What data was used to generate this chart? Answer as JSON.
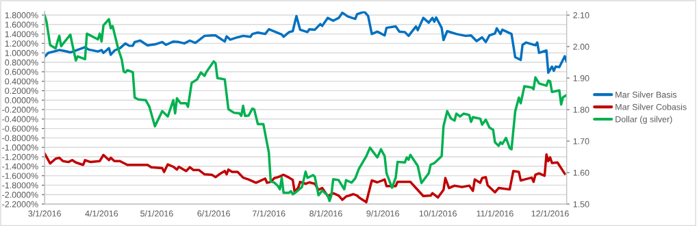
{
  "chart_data": {
    "type": "line",
    "xlim": [
      "2016-03-01",
      "2016-12-10"
    ],
    "xticks": [
      {
        "value": "2016-03-01",
        "label": "3/1/2016"
      },
      {
        "value": "2016-04-01",
        "label": "4/1/2016"
      },
      {
        "value": "2016-05-01",
        "label": "5/1/2016"
      },
      {
        "value": "2016-06-01",
        "label": "6/1/2016"
      },
      {
        "value": "2016-07-01",
        "label": "7/1/2016"
      },
      {
        "value": "2016-08-01",
        "label": "8/1/2016"
      },
      {
        "value": "2016-09-01",
        "label": "9/1/2016"
      },
      {
        "value": "2016-10-01",
        "label": "10/1/2016"
      },
      {
        "value": "2016-11-01",
        "label": "11/1/2016"
      },
      {
        "value": "2016-12-01",
        "label": "12/1/2016"
      }
    ],
    "ylim": [
      -2.2,
      1.88
    ],
    "yticks": [
      {
        "value": -2.2,
        "label": "-2.2000%"
      },
      {
        "value": -2.0,
        "label": "-2.0000%"
      },
      {
        "value": -1.8,
        "label": "-1.8000%"
      },
      {
        "value": -1.6,
        "label": "-1.6000%"
      },
      {
        "value": -1.4,
        "label": "-1.4000%"
      },
      {
        "value": -1.2,
        "label": "-1.2000%"
      },
      {
        "value": -1.0,
        "label": "-1.0000%"
      },
      {
        "value": -0.8,
        "label": "-0.8000%"
      },
      {
        "value": -0.6,
        "label": "-0.6000%"
      },
      {
        "value": -0.4,
        "label": "-0.4000%"
      },
      {
        "value": -0.2,
        "label": "-0.2000%"
      },
      {
        "value": 0,
        "label": "0.0000%"
      },
      {
        "value": 0.2,
        "label": "0.2000%"
      },
      {
        "value": 0.4,
        "label": "0.4000%"
      },
      {
        "value": 0.6,
        "label": "0.6000%"
      },
      {
        "value": 0.8,
        "label": "0.8000%"
      },
      {
        "value": 1.0,
        "label": "1.0000%"
      },
      {
        "value": 1.2,
        "label": "1.2000%"
      },
      {
        "value": 1.4,
        "label": "1.4000%"
      },
      {
        "value": 1.6,
        "label": "1.6000%"
      },
      {
        "value": 1.8,
        "label": "1.8000%"
      }
    ],
    "y2lim": [
      1.5,
      2.112
    ],
    "y2ticks": [
      {
        "value": 1.5,
        "label": "1.50"
      },
      {
        "value": 1.6,
        "label": "1.60"
      },
      {
        "value": 1.7,
        "label": "1.70"
      },
      {
        "value": 1.8,
        "label": "1.80"
      },
      {
        "value": 1.9,
        "label": "1.90"
      },
      {
        "value": 2.0,
        "label": "2.00"
      },
      {
        "value": 2.1,
        "label": "2.10"
      }
    ],
    "grid": "y",
    "legend": "right",
    "marker": "none",
    "line_style": "solid",
    "series": [
      {
        "name": "Mar Silver Basis",
        "color": "#0070c0",
        "x": [
          "2016-03-01",
          "2016-03-03",
          "2016-03-05",
          "2016-03-09",
          "2016-03-12",
          "2016-03-15",
          "2016-03-23",
          "2016-03-25",
          "2016-03-30",
          "2016-04-01",
          "2016-04-02",
          "2016-04-05",
          "2016-04-06",
          "2016-04-08",
          "2016-04-11",
          "2016-04-14",
          "2016-04-16",
          "2016-04-18",
          "2016-04-19",
          "2016-04-22",
          "2016-04-26",
          "2016-04-30",
          "2016-05-04",
          "2016-05-06",
          "2016-05-10",
          "2016-05-13",
          "2016-05-16",
          "2016-05-19",
          "2016-05-22",
          "2016-05-24",
          "2016-05-27",
          "2016-05-31",
          "2016-06-02",
          "2016-06-07",
          "2016-06-08",
          "2016-06-10",
          "2016-06-14",
          "2016-06-17",
          "2016-06-21",
          "2016-06-22",
          "2016-06-25",
          "2016-06-29",
          "2016-07-01",
          "2016-07-03",
          "2016-07-08",
          "2016-07-09",
          "2016-07-12",
          "2016-07-14",
          "2016-07-16",
          "2016-07-18",
          "2016-07-22",
          "2016-07-23",
          "2016-07-26",
          "2016-07-29",
          "2016-07-30",
          "2016-08-02",
          "2016-08-05",
          "2016-08-08",
          "2016-08-10",
          "2016-08-13",
          "2016-08-17",
          "2016-08-18",
          "2016-08-22",
          "2016-08-24",
          "2016-08-26",
          "2016-08-29",
          "2016-09-02",
          "2016-09-03",
          "2016-09-08",
          "2016-09-10",
          "2016-09-13",
          "2016-09-15",
          "2016-09-19",
          "2016-09-20",
          "2016-09-23",
          "2016-09-26",
          "2016-09-28",
          "2016-09-29",
          "2016-09-30",
          "2016-10-03",
          "2016-10-04",
          "2016-10-06",
          "2016-10-11",
          "2016-10-16",
          "2016-10-19",
          "2016-10-22",
          "2016-10-25",
          "2016-10-27",
          "2016-10-29",
          "2016-11-01",
          "2016-11-02",
          "2016-11-04",
          "2016-11-05",
          "2016-11-10",
          "2016-11-12",
          "2016-11-15",
          "2016-11-16",
          "2016-11-18",
          "2016-11-23",
          "2016-11-24",
          "2016-11-25",
          "2016-11-29",
          "2016-11-30",
          "2016-12-02",
          "2016-12-03",
          "2016-12-04",
          "2016-12-06",
          "2016-12-09",
          "2016-12-10"
        ],
        "values": [
          0.92,
          1.0,
          1.02,
          1.06,
          1.04,
          1.01,
          1.12,
          1.07,
          1.03,
          1.06,
          1.0,
          1.1,
          0.96,
          1.05,
          1.1,
          1.2,
          1.15,
          1.15,
          1.23,
          1.26,
          1.16,
          1.18,
          1.23,
          1.17,
          1.24,
          1.23,
          1.2,
          1.26,
          1.21,
          1.27,
          1.36,
          1.37,
          1.37,
          1.24,
          1.35,
          1.28,
          1.33,
          1.36,
          1.34,
          1.4,
          1.43,
          1.4,
          1.5,
          1.47,
          1.39,
          1.34,
          1.44,
          1.46,
          1.78,
          1.49,
          1.44,
          1.5,
          1.49,
          1.61,
          1.57,
          1.74,
          1.68,
          1.74,
          1.85,
          1.77,
          1.72,
          1.82,
          1.87,
          1.78,
          1.4,
          1.45,
          1.37,
          1.53,
          1.56,
          1.45,
          1.44,
          1.36,
          1.56,
          1.48,
          1.74,
          1.64,
          1.74,
          1.66,
          1.75,
          1.53,
          1.27,
          1.46,
          1.4,
          1.36,
          1.37,
          1.25,
          1.33,
          1.23,
          1.37,
          1.41,
          1.52,
          1.4,
          1.49,
          1.4,
          0.91,
          0.85,
          1.17,
          1.22,
          1.16,
          1.22,
          1.0,
          1.05,
          0.58,
          0.71,
          0.62,
          0.71,
          0.7,
          0.93,
          0.81
        ]
      },
      {
        "name": "Mar Silver Cobasis",
        "color": "#c00000",
        "x": [
          "2016-03-01",
          "2016-03-04",
          "2016-03-07",
          "2016-03-09",
          "2016-03-11",
          "2016-03-14",
          "2016-03-16",
          "2016-03-18",
          "2016-03-22",
          "2016-03-23",
          "2016-03-26",
          "2016-03-31",
          "2016-04-02",
          "2016-04-05",
          "2016-04-06",
          "2016-04-08",
          "2016-04-11",
          "2016-04-15",
          "2016-04-19",
          "2016-04-26",
          "2016-04-28",
          "2016-05-04",
          "2016-05-05",
          "2016-05-07",
          "2016-05-10",
          "2016-05-12",
          "2016-05-13",
          "2016-05-17",
          "2016-05-19",
          "2016-05-21",
          "2016-05-24",
          "2016-05-27",
          "2016-05-31",
          "2016-06-02",
          "2016-06-04",
          "2016-06-07",
          "2016-06-08",
          "2016-06-09",
          "2016-06-11",
          "2016-06-14",
          "2016-06-17",
          "2016-06-20",
          "2016-06-24",
          "2016-06-29",
          "2016-06-30",
          "2016-07-02",
          "2016-07-04",
          "2016-07-06",
          "2016-07-09",
          "2016-07-12",
          "2016-07-14",
          "2016-07-15",
          "2016-07-17",
          "2016-07-18",
          "2016-07-21",
          "2016-07-23",
          "2016-07-26",
          "2016-07-28",
          "2016-07-30",
          "2016-08-02",
          "2016-08-05",
          "2016-08-08",
          "2016-08-10",
          "2016-08-12",
          "2016-08-16",
          "2016-08-18",
          "2016-08-19",
          "2016-08-23",
          "2016-08-26",
          "2016-08-29",
          "2016-09-02",
          "2016-09-03",
          "2016-09-08",
          "2016-09-09",
          "2016-09-13",
          "2016-09-16",
          "2016-09-19",
          "2016-09-23",
          "2016-09-27",
          "2016-09-28",
          "2016-10-01",
          "2016-10-04",
          "2016-10-05",
          "2016-10-07",
          "2016-10-10",
          "2016-10-14",
          "2016-10-18",
          "2016-10-20",
          "2016-10-21",
          "2016-10-24",
          "2016-10-25",
          "2016-10-27",
          "2016-10-28",
          "2016-11-01",
          "2016-11-03",
          "2016-11-09",
          "2016-11-11",
          "2016-11-14",
          "2016-11-15",
          "2016-11-17",
          "2016-11-21",
          "2016-11-22",
          "2016-11-23",
          "2016-11-25",
          "2016-11-28",
          "2016-11-29",
          "2016-11-30",
          "2016-12-01",
          "2016-12-02",
          "2016-12-05",
          "2016-12-09"
        ],
        "values": [
          -1.13,
          -1.34,
          -1.24,
          -1.22,
          -1.29,
          -1.31,
          -1.27,
          -1.32,
          -1.37,
          -1.27,
          -1.31,
          -1.29,
          -1.16,
          -1.27,
          -1.22,
          -1.29,
          -1.29,
          -1.37,
          -1.37,
          -1.37,
          -1.42,
          -1.44,
          -1.52,
          -1.36,
          -1.41,
          -1.47,
          -1.41,
          -1.5,
          -1.42,
          -1.48,
          -1.48,
          -1.57,
          -1.58,
          -1.63,
          -1.57,
          -1.5,
          -1.57,
          -1.47,
          -1.52,
          -1.52,
          -1.64,
          -1.68,
          -1.75,
          -1.66,
          -1.75,
          -1.73,
          -1.65,
          -1.63,
          -1.58,
          -1.64,
          -1.69,
          -1.94,
          -1.85,
          -1.73,
          -1.77,
          -1.74,
          -1.77,
          -1.9,
          -1.86,
          -2.03,
          -1.97,
          -2.02,
          -2.11,
          -2.04,
          -1.99,
          -2.02,
          -2.06,
          -2.16,
          -1.7,
          -1.74,
          -1.68,
          -1.82,
          -1.82,
          -1.73,
          -1.73,
          -1.73,
          -1.86,
          -2.03,
          -2.02,
          -1.97,
          -2.06,
          -1.9,
          -1.65,
          -1.86,
          -1.81,
          -1.84,
          -1.81,
          -1.92,
          -1.68,
          -1.75,
          -1.65,
          -1.63,
          -1.8,
          -1.95,
          -1.86,
          -1.89,
          -1.5,
          -1.52,
          -1.7,
          -1.68,
          -1.64,
          -1.73,
          -1.58,
          -1.55,
          -1.6,
          -1.15,
          -1.29,
          -1.21,
          -1.33,
          -1.32,
          -1.56
        ]
      },
      {
        "name": "Dollar (g silver)",
        "color": "#00b050",
        "axis": "y2",
        "x": [
          "2016-03-01",
          "2016-03-02",
          "2016-03-04",
          "2016-03-07",
          "2016-03-08",
          "2016-03-09",
          "2016-03-10",
          "2016-03-11",
          "2016-03-15",
          "2016-03-16",
          "2016-03-18",
          "2016-03-19",
          "2016-03-23",
          "2016-03-24",
          "2016-03-30",
          "2016-03-31",
          "2016-04-01",
          "2016-04-02",
          "2016-04-05",
          "2016-04-06",
          "2016-04-07",
          "2016-04-10",
          "2016-04-12",
          "2016-04-13",
          "2016-04-14",
          "2016-04-15",
          "2016-04-18",
          "2016-04-19",
          "2016-04-21",
          "2016-04-25",
          "2016-04-27",
          "2016-04-30",
          "2016-05-04",
          "2016-05-07",
          "2016-05-10",
          "2016-05-11",
          "2016-05-12",
          "2016-05-14",
          "2016-05-17",
          "2016-05-18",
          "2016-05-20",
          "2016-05-23",
          "2016-05-25",
          "2016-05-27",
          "2016-05-28",
          "2016-06-01",
          "2016-06-02",
          "2016-06-03",
          "2016-06-07",
          "2016-06-09",
          "2016-06-12",
          "2016-06-15",
          "2016-06-16",
          "2016-06-17",
          "2016-06-18",
          "2016-06-20",
          "2016-06-22",
          "2016-06-23",
          "2016-06-25",
          "2016-06-28",
          "2016-07-01",
          "2016-07-02",
          "2016-07-04",
          "2016-07-06",
          "2016-07-07",
          "2016-07-08",
          "2016-07-09",
          "2016-07-12",
          "2016-07-13",
          "2016-07-14",
          "2016-07-16",
          "2016-07-19",
          "2016-07-21",
          "2016-07-22",
          "2016-07-25",
          "2016-07-26",
          "2016-07-28",
          "2016-07-30",
          "2016-08-02",
          "2016-08-03",
          "2016-08-04",
          "2016-08-05",
          "2016-08-08",
          "2016-08-11",
          "2016-08-12",
          "2016-08-15",
          "2016-08-17",
          "2016-08-19",
          "2016-08-23",
          "2016-08-25",
          "2016-08-29",
          "2016-08-31",
          "2016-09-02",
          "2016-09-03",
          "2016-09-06",
          "2016-09-08",
          "2016-09-09",
          "2016-09-13",
          "2016-09-14",
          "2016-09-15",
          "2016-09-16",
          "2016-09-20",
          "2016-09-22",
          "2016-09-26",
          "2016-09-27",
          "2016-09-29",
          "2016-10-03",
          "2016-10-04",
          "2016-10-06",
          "2016-10-08",
          "2016-10-10",
          "2016-10-11",
          "2016-10-13",
          "2016-10-15",
          "2016-10-18",
          "2016-10-19",
          "2016-10-20",
          "2016-10-24",
          "2016-10-25",
          "2016-10-27",
          "2016-10-29",
          "2016-10-31",
          "2016-11-01",
          "2016-11-03",
          "2016-11-04",
          "2016-11-05",
          "2016-11-07",
          "2016-11-09",
          "2016-11-10",
          "2016-11-12",
          "2016-11-14",
          "2016-11-15",
          "2016-11-17",
          "2016-11-21",
          "2016-11-22",
          "2016-11-23",
          "2016-11-25",
          "2016-11-29",
          "2016-11-30",
          "2016-12-01",
          "2016-12-02",
          "2016-12-06",
          "2016-12-07",
          "2016-12-08",
          "2016-12-10"
        ],
        "values": [
          2.1,
          2.08,
          2.005,
          1.994,
          2.016,
          2.034,
          2.001,
          2.009,
          2.038,
          2.009,
          1.956,
          1.969,
          1.96,
          2.041,
          2.023,
          2.041,
          2.016,
          2.067,
          2.087,
          2.058,
          2.065,
          1.994,
          1.958,
          1.921,
          1.918,
          1.925,
          1.919,
          1.838,
          1.832,
          1.83,
          1.809,
          1.747,
          1.795,
          1.778,
          1.83,
          1.788,
          1.836,
          1.82,
          1.82,
          1.809,
          1.885,
          1.896,
          1.918,
          1.907,
          1.919,
          1.953,
          1.947,
          1.9,
          1.896,
          1.801,
          1.79,
          1.788,
          1.78,
          1.812,
          1.78,
          1.781,
          1.803,
          1.801,
          1.754,
          1.754,
          1.663,
          1.572,
          1.568,
          1.557,
          1.547,
          1.583,
          1.536,
          1.536,
          1.541,
          1.531,
          1.539,
          1.554,
          1.603,
          1.583,
          1.592,
          1.587,
          1.528,
          1.543,
          1.528,
          1.51,
          1.528,
          1.579,
          1.576,
          1.547,
          1.576,
          1.568,
          1.582,
          1.612,
          1.652,
          1.679,
          1.648,
          1.674,
          1.652,
          1.598,
          1.552,
          1.584,
          1.634,
          1.632,
          1.648,
          1.641,
          1.656,
          1.621,
          1.567,
          1.598,
          1.625,
          1.63,
          1.652,
          1.747,
          1.795,
          1.772,
          1.765,
          1.787,
          1.778,
          1.787,
          1.783,
          1.761,
          1.776,
          1.771,
          1.752,
          1.768,
          1.743,
          1.736,
          1.696,
          1.685,
          1.696,
          1.691,
          1.71,
          1.678,
          1.674,
          1.794,
          1.838,
          1.82,
          1.874,
          1.87,
          1.865,
          1.902,
          1.883,
          1.876,
          1.892,
          1.89,
          1.856,
          1.861,
          1.816,
          1.839,
          1.846
        ]
      }
    ]
  }
}
